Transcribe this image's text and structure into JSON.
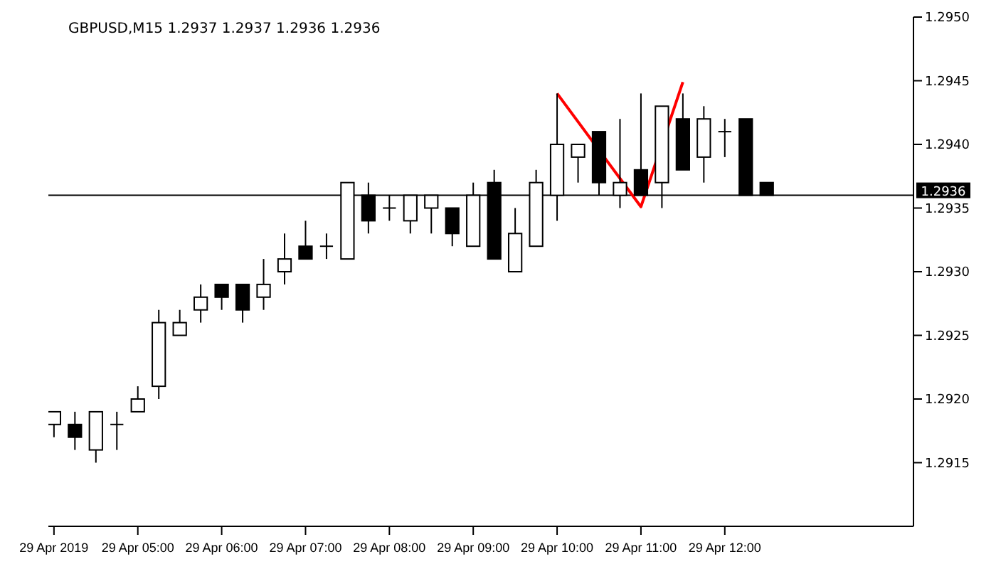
{
  "chart_data": {
    "type": "candlestick",
    "title": "GBPUSD,M15 1.2937 1.2937 1.2936 1.2936",
    "x": [
      "2019-04-29T04:00",
      "2019-04-29T04:15",
      "2019-04-29T04:30",
      "2019-04-29T04:45",
      "2019-04-29T05:00",
      "2019-04-29T05:15",
      "2019-04-29T05:30",
      "2019-04-29T05:45",
      "2019-04-29T06:00",
      "2019-04-29T06:15",
      "2019-04-29T06:30",
      "2019-04-29T06:45",
      "2019-04-29T07:00",
      "2019-04-29T07:15",
      "2019-04-29T07:30",
      "2019-04-29T07:45",
      "2019-04-29T08:00",
      "2019-04-29T08:15",
      "2019-04-29T08:30",
      "2019-04-29T08:45",
      "2019-04-29T09:00",
      "2019-04-29T09:15",
      "2019-04-29T09:30",
      "2019-04-29T09:45",
      "2019-04-29T10:00",
      "2019-04-29T10:15",
      "2019-04-29T10:30",
      "2019-04-29T10:45",
      "2019-04-29T11:00",
      "2019-04-29T11:15",
      "2019-04-29T11:30",
      "2019-04-29T11:45",
      "2019-04-29T12:00",
      "2019-04-29T12:15",
      "2019-04-29T12:30"
    ],
    "ohlc": [
      [
        1.2918,
        1.2919,
        1.2917,
        1.2919
      ],
      [
        1.2918,
        1.2919,
        1.2916,
        1.2917
      ],
      [
        1.2916,
        1.2919,
        1.2915,
        1.2919
      ],
      [
        1.2918,
        1.2919,
        1.2916,
        1.2918
      ],
      [
        1.2919,
        1.2921,
        1.2919,
        1.292
      ],
      [
        1.2921,
        1.2927,
        1.292,
        1.2926
      ],
      [
        1.2925,
        1.2927,
        1.2925,
        1.2926
      ],
      [
        1.2927,
        1.2929,
        1.2926,
        1.2928
      ],
      [
        1.2929,
        1.2929,
        1.2927,
        1.2928
      ],
      [
        1.2929,
        1.2929,
        1.2926,
        1.2927
      ],
      [
        1.2928,
        1.2931,
        1.2927,
        1.2929
      ],
      [
        1.293,
        1.2933,
        1.2929,
        1.2931
      ],
      [
        1.2932,
        1.2934,
        1.2931,
        1.2931
      ],
      [
        1.2932,
        1.2933,
        1.2931,
        1.2932
      ],
      [
        1.2931,
        1.2937,
        1.2931,
        1.2937
      ],
      [
        1.2936,
        1.2937,
        1.2933,
        1.2934
      ],
      [
        1.2935,
        1.2936,
        1.2934,
        1.2935
      ],
      [
        1.2934,
        1.2936,
        1.2933,
        1.2936
      ],
      [
        1.2935,
        1.2936,
        1.2933,
        1.2936
      ],
      [
        1.2935,
        1.2935,
        1.2932,
        1.2933
      ],
      [
        1.2932,
        1.2937,
        1.2932,
        1.2936
      ],
      [
        1.2937,
        1.2938,
        1.2931,
        1.2931
      ],
      [
        1.293,
        1.2935,
        1.293,
        1.2933
      ],
      [
        1.2932,
        1.2938,
        1.2932,
        1.2937
      ],
      [
        1.2936,
        1.2944,
        1.2934,
        1.294
      ],
      [
        1.2939,
        1.294,
        1.2937,
        1.294
      ],
      [
        1.2941,
        1.2941,
        1.2936,
        1.2937
      ],
      [
        1.2936,
        1.2942,
        1.2935,
        1.2937
      ],
      [
        1.2938,
        1.2944,
        1.2936,
        1.2936
      ],
      [
        1.2937,
        1.2943,
        1.2935,
        1.2943
      ],
      [
        1.2942,
        1.2944,
        1.2938,
        1.2938
      ],
      [
        1.2939,
        1.2943,
        1.2937,
        1.2942
      ],
      [
        1.2941,
        1.2942,
        1.2939,
        1.2941
      ],
      [
        1.2942,
        1.2942,
        1.2936,
        1.2936
      ],
      [
        1.2937,
        1.2937,
        1.2936,
        1.2936
      ]
    ],
    "series": [
      {
        "type": "line",
        "color": "#ff0000",
        "x": [
          "2019-04-29T10:00",
          "2019-04-29T11:00",
          "2019-04-29T11:30"
        ],
        "values": [
          1.2944,
          1.29351,
          1.29449
        ]
      }
    ],
    "xlim": [
      "2019-04-29T03:56",
      "2019-04-29T14:15"
    ],
    "xticks": [
      {
        "value": "2019-04-29T04:00",
        "label": "29 Apr 2019"
      },
      {
        "value": "2019-04-29T05:00",
        "label": "29 Apr 05:00"
      },
      {
        "value": "2019-04-29T06:00",
        "label": "29 Apr 06:00"
      },
      {
        "value": "2019-04-29T07:00",
        "label": "29 Apr 07:00"
      },
      {
        "value": "2019-04-29T08:00",
        "label": "29 Apr 08:00"
      },
      {
        "value": "2019-04-29T09:00",
        "label": "29 Apr 09:00"
      },
      {
        "value": "2019-04-29T10:00",
        "label": "29 Apr 10:00"
      },
      {
        "value": "2019-04-29T11:00",
        "label": "29 Apr 11:00"
      },
      {
        "value": "2019-04-29T12:00",
        "label": "29 Apr 12:00"
      }
    ],
    "ylim": [
      1.291,
      1.295
    ],
    "yticks": [
      {
        "value": 1.2915,
        "label": "1.2915"
      },
      {
        "value": 1.292,
        "label": "1.2920"
      },
      {
        "value": 1.2925,
        "label": "1.2925"
      },
      {
        "value": 1.293,
        "label": "1.2930"
      },
      {
        "value": 1.2935,
        "label": "1.2935"
      },
      {
        "value": 1.294,
        "label": "1.2940"
      },
      {
        "value": 1.2945,
        "label": "1.2945"
      },
      {
        "value": 1.295,
        "label": "1.2950"
      }
    ],
    "ref_lines": [
      {
        "axis": "y",
        "value": 1.2936,
        "label": "1.2936",
        "color": "#000000"
      }
    ],
    "line_style": "solid"
  }
}
